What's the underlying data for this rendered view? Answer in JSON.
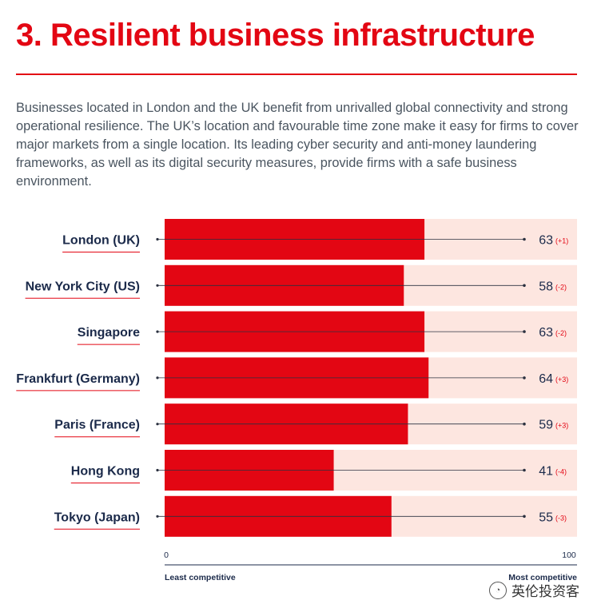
{
  "heading": "3. Resilient business infrastructure",
  "intro": "Businesses located in London and the UK benefit from unrivalled global connectivity and strong operational resilience. The UK’s location and favourable time zone make it easy for firms to cover major markets from a single location. Its leading cyber security and anti-money laundering frameworks, as well as its digital security measures, provide firms with a safe business environment.",
  "watermark": {
    "text": "英伦投资客",
    "icon": "wechat-icon"
  },
  "colors": {
    "accent": "#e30613",
    "track": "#fde6e0",
    "label": "#1b2a4a",
    "change": "#e30613"
  },
  "chart_data": {
    "type": "bar",
    "orientation": "horizontal",
    "categories": [
      "London (UK)",
      "New York City (US)",
      "Singapore",
      "Frankfurt (Germany)",
      "Paris (France)",
      "Hong Kong",
      "Tokyo (Japan)"
    ],
    "values": [
      63,
      58,
      63,
      64,
      59,
      41,
      55
    ],
    "changes": [
      "(+1)",
      "(-2)",
      "(-2)",
      "(+3)",
      "(+3)",
      "(-4)",
      "(-3)"
    ],
    "xlim": [
      0,
      100
    ],
    "tick_labels": [
      "0",
      "100"
    ],
    "axis_caption_left": "Least competitive",
    "axis_caption_right": "Most competitive",
    "title": "",
    "xlabel": "",
    "ylabel": ""
  }
}
